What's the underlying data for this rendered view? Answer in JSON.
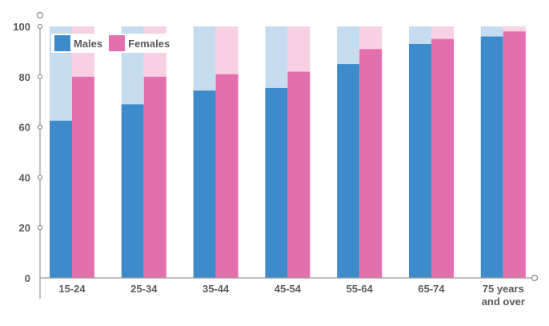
{
  "chart_data": {
    "type": "bar",
    "categories": [
      "15-24",
      "25-34",
      "35-44",
      "45-54",
      "55-64",
      "65-74",
      "75 years and over"
    ],
    "category_lines": [
      [
        "15-24"
      ],
      [
        "25-34"
      ],
      [
        "35-44"
      ],
      [
        "45-54"
      ],
      [
        "55-64"
      ],
      [
        "65-74"
      ],
      [
        "75 years",
        "and over"
      ]
    ],
    "series": [
      {
        "name": "Males",
        "values": [
          62.5,
          69,
          74.5,
          75.5,
          85,
          93,
          96
        ],
        "color": "#3d8bcb",
        "bg_color": "#c5dbef"
      },
      {
        "name": "Females",
        "values": [
          80,
          80,
          81,
          82,
          91,
          95,
          98
        ],
        "color": "#e36fae",
        "bg_color": "#f8d0e4"
      }
    ],
    "y_ticks": [
      "0",
      "20",
      "40",
      "60",
      "80",
      "100"
    ],
    "ylim": [
      0,
      100
    ],
    "grid": false,
    "legend_placement": "top-left",
    "title": "",
    "xlabel": "",
    "ylabel": ""
  }
}
